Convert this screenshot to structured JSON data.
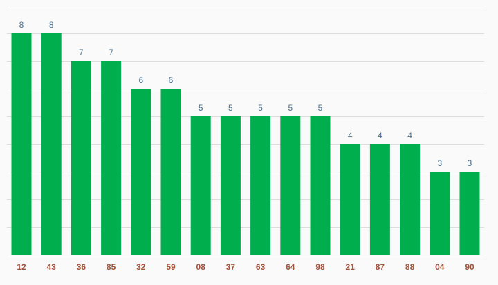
{
  "chart_data": {
    "type": "bar",
    "categories": [
      "12",
      "43",
      "36",
      "85",
      "32",
      "59",
      "08",
      "37",
      "63",
      "64",
      "98",
      "21",
      "87",
      "88",
      "04",
      "90"
    ],
    "values": [
      8,
      8,
      7,
      7,
      6,
      6,
      5,
      5,
      5,
      5,
      5,
      4,
      4,
      4,
      3,
      3
    ],
    "title": "",
    "xlabel": "",
    "ylabel": "",
    "ylim": [
      0,
      9
    ],
    "grid": true,
    "legend": "none",
    "colors": {
      "bar": "#00ae4e",
      "value_label": "#4b6e8c",
      "category_label": "#a0523a",
      "grid": "#dcdcdc",
      "background": "#fafafa"
    }
  }
}
